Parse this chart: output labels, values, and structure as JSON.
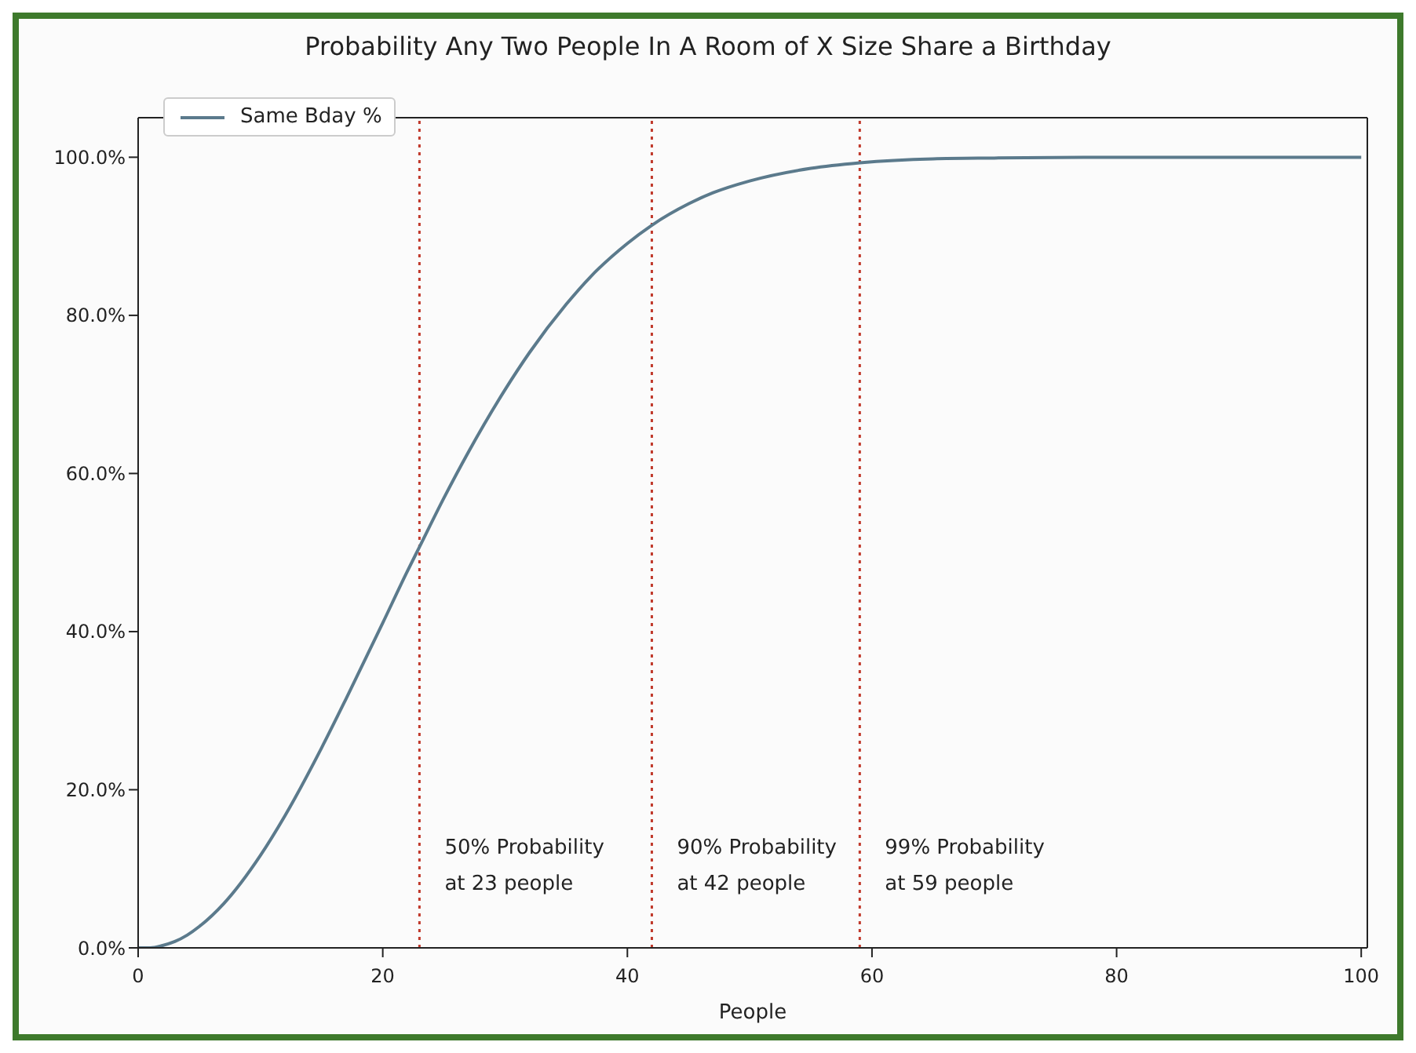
{
  "chart_data": {
    "type": "line",
    "title": "Probability Any Two People In A Room of X Size Share a Birthday",
    "xlabel": "People",
    "x": [
      0,
      1,
      2,
      3,
      4,
      5,
      7,
      10,
      12,
      15,
      17,
      20,
      22,
      23,
      25,
      27,
      30,
      32,
      35,
      37,
      40,
      42,
      45,
      47,
      50,
      55,
      59,
      65,
      70,
      80,
      90,
      100
    ],
    "series": [
      {
        "name": "Same Bday %",
        "color": "#5b7a8c",
        "values": [
          0,
          0,
          0.3,
          0.8,
          1.6,
          2.7,
          5.6,
          11.7,
          16.7,
          25.3,
          31.5,
          41.1,
          47.6,
          50.7,
          56.9,
          62.7,
          70.6,
          75.3,
          81.4,
          84.9,
          89.1,
          91.4,
          94.1,
          95.5,
          97.0,
          98.6,
          99.3,
          99.8,
          99.9,
          100,
          100,
          100
        ]
      }
    ],
    "xlim": [
      0,
      100.5
    ],
    "xticks": [
      0,
      20,
      40,
      60,
      80,
      100
    ],
    "ylim": [
      0,
      105
    ],
    "yticks": [
      {
        "value": 0,
        "label": "0.0%"
      },
      {
        "value": 20,
        "label": "20.0%"
      },
      {
        "value": 40,
        "label": "40.0%"
      },
      {
        "value": 60,
        "label": "60.0%"
      },
      {
        "value": 80,
        "label": "80.0%"
      },
      {
        "value": 100,
        "label": "100.0%"
      }
    ],
    "ref_lines": [
      {
        "axis": "x",
        "value": 23,
        "label": "50% Probability\nat 23 people",
        "color": "#c0392b",
        "line_style": "dotted"
      },
      {
        "axis": "x",
        "value": 42,
        "label": "90% Probability\nat 42 people",
        "color": "#c0392b",
        "line_style": "dotted"
      },
      {
        "axis": "x",
        "value": 59,
        "label": "99% Probability\nat 59 people",
        "color": "#c0392b",
        "line_style": "dotted"
      }
    ],
    "legend": "top left",
    "marker": "none",
    "line_style": "solid"
  }
}
